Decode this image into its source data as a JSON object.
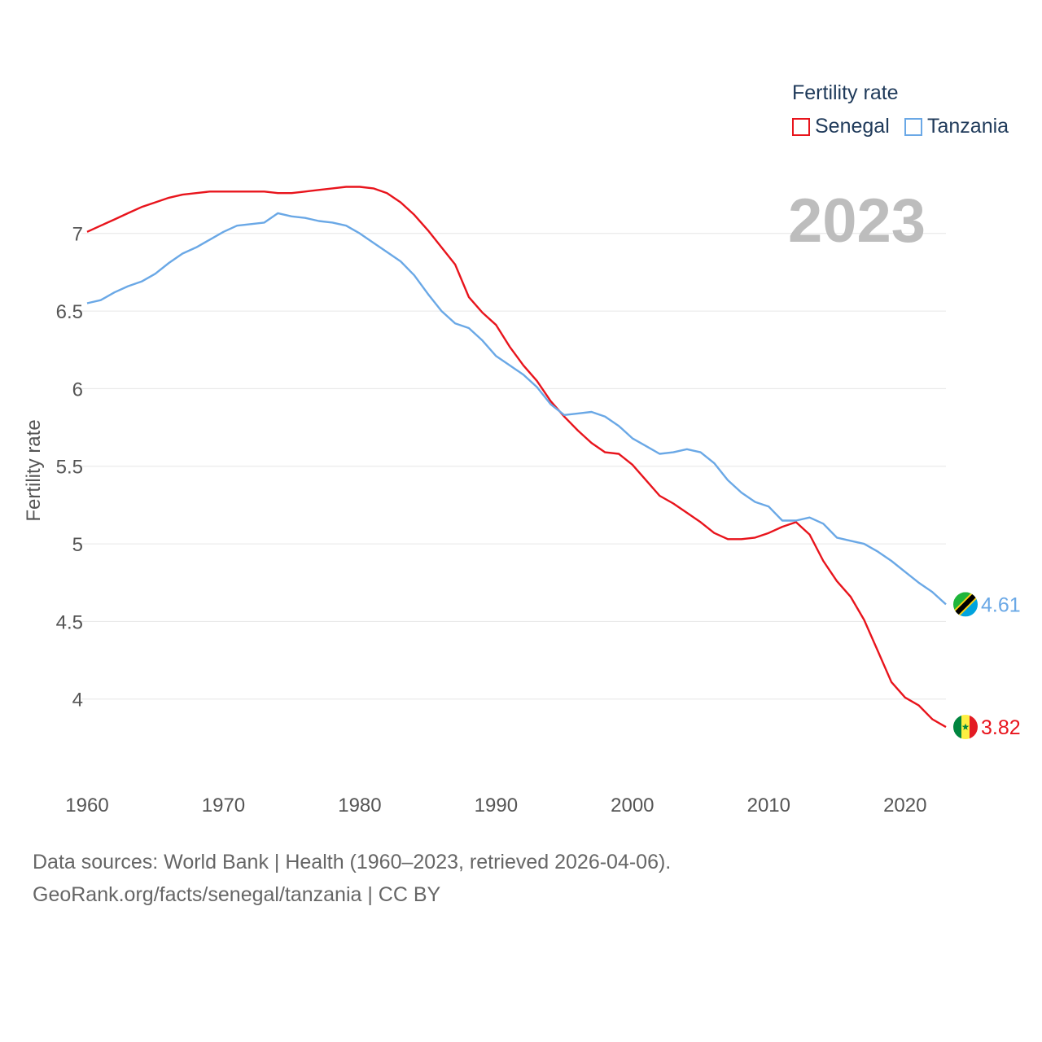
{
  "chart_data": {
    "type": "line",
    "title": "",
    "legend_title": "Fertility rate",
    "legend_position": "top-right",
    "year_label": "2023",
    "xlabel": "",
    "ylabel": "Fertility rate",
    "xlim": [
      1960,
      2023
    ],
    "ylim": [
      3.6,
      7.35
    ],
    "xticks": [
      1960,
      1970,
      1980,
      1990,
      2000,
      2010,
      2020
    ],
    "yticks": [
      4,
      4.5,
      5,
      5.5,
      6,
      6.5,
      7
    ],
    "grid": "horizontal",
    "x": [
      1960,
      1961,
      1962,
      1963,
      1964,
      1965,
      1966,
      1967,
      1968,
      1969,
      1970,
      1971,
      1972,
      1973,
      1974,
      1975,
      1976,
      1977,
      1978,
      1979,
      1980,
      1981,
      1982,
      1983,
      1984,
      1985,
      1986,
      1987,
      1988,
      1989,
      1990,
      1991,
      1992,
      1993,
      1994,
      1995,
      1996,
      1997,
      1998,
      1999,
      2000,
      2001,
      2002,
      2003,
      2004,
      2005,
      2006,
      2007,
      2008,
      2009,
      2010,
      2011,
      2012,
      2013,
      2014,
      2015,
      2016,
      2017,
      2018,
      2019,
      2020,
      2021,
      2022,
      2023
    ],
    "series": [
      {
        "name": "Senegal",
        "color": "#e8141c",
        "end_label": "3.82",
        "flag": "senegal",
        "values": [
          7.01,
          7.05,
          7.09,
          7.13,
          7.17,
          7.2,
          7.23,
          7.25,
          7.26,
          7.27,
          7.27,
          7.27,
          7.27,
          7.27,
          7.26,
          7.26,
          7.27,
          7.28,
          7.29,
          7.3,
          7.3,
          7.29,
          7.26,
          7.2,
          7.12,
          7.02,
          6.91,
          6.8,
          6.59,
          6.49,
          6.41,
          6.27,
          6.15,
          6.05,
          5.92,
          5.82,
          5.73,
          5.65,
          5.59,
          5.58,
          5.51,
          5.41,
          5.31,
          5.26,
          5.2,
          5.14,
          5.07,
          5.03,
          5.03,
          5.04,
          5.07,
          5.11,
          5.14,
          5.06,
          4.89,
          4.76,
          4.66,
          4.51,
          4.31,
          4.11,
          4.01,
          3.96,
          3.87,
          3.82
        ]
      },
      {
        "name": "Tanzania",
        "color": "#6aa8e6",
        "end_label": "4.61",
        "flag": "tanzania",
        "values": [
          6.55,
          6.57,
          6.62,
          6.66,
          6.69,
          6.74,
          6.81,
          6.87,
          6.91,
          6.96,
          7.01,
          7.05,
          7.06,
          7.07,
          7.13,
          7.11,
          7.1,
          7.08,
          7.07,
          7.05,
          7.0,
          6.94,
          6.88,
          6.82,
          6.73,
          6.61,
          6.5,
          6.42,
          6.39,
          6.31,
          6.21,
          6.15,
          6.09,
          6.01,
          5.9,
          5.83,
          5.84,
          5.85,
          5.82,
          5.76,
          5.68,
          5.63,
          5.58,
          5.59,
          5.61,
          5.59,
          5.52,
          5.41,
          5.33,
          5.27,
          5.24,
          5.15,
          5.15,
          5.17,
          5.13,
          5.04,
          5.02,
          5.0,
          4.95,
          4.89,
          4.82,
          4.75,
          4.69,
          4.61
        ]
      }
    ]
  },
  "footer": {
    "line1": "Data sources: World Bank | Health (1960–2023, retrieved 2026-04-06).",
    "line2": "GeoRank.org/facts/senegal/tanzania | CC BY"
  }
}
